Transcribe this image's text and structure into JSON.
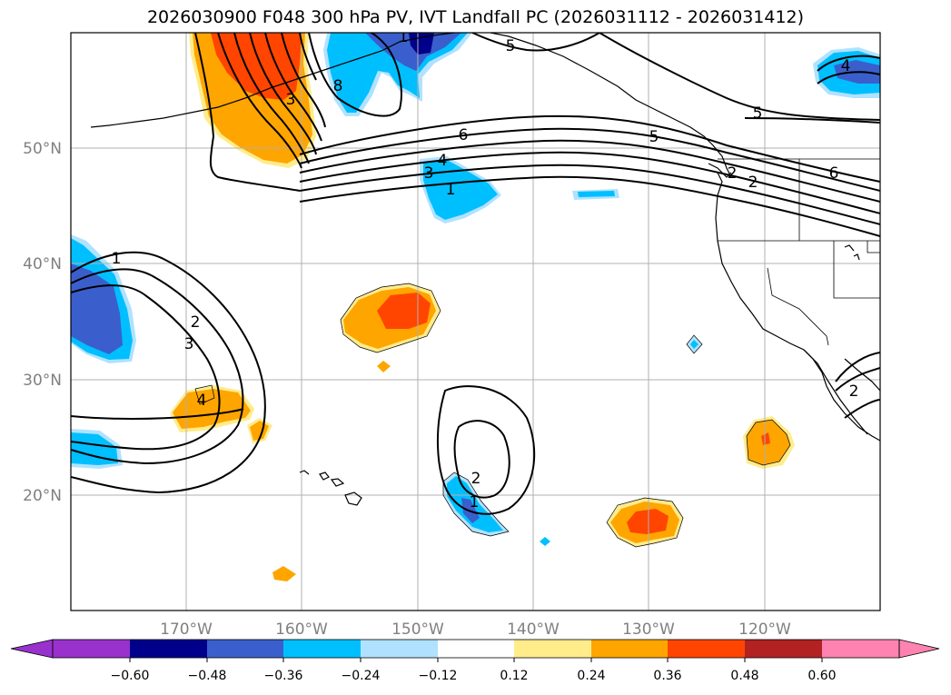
{
  "title": "2026030900 F048 300 hPa PV, IVT Landfall PC (2026031112 - 2026031412)",
  "map": {
    "projection": "PlateCarree",
    "lon_range": [
      -180,
      -110
    ],
    "lat_range": [
      10,
      60
    ],
    "lat_ticks": [
      "50°N",
      "40°N",
      "30°N",
      "20°N"
    ],
    "lon_ticks": [
      "170°W",
      "160°W",
      "150°W",
      "140°W",
      "130°W",
      "120°W"
    ],
    "grid": true
  },
  "contour_labels": [
    "1",
    "2",
    "3",
    "4",
    "5",
    "6",
    "8",
    "1",
    "2",
    "3",
    "4",
    "5",
    "6",
    "1",
    "2",
    "3",
    "1",
    "2",
    "4",
    "5",
    "2"
  ],
  "colorbar": {
    "ticks": [
      "−0.60",
      "−0.48",
      "−0.36",
      "−0.24",
      "−0.12",
      "0.12",
      "0.24",
      "0.36",
      "0.48",
      "0.60"
    ],
    "colors": [
      "#9932cc",
      "#00008b",
      "#3a5fcd",
      "#00bfff",
      "#b0e2ff",
      "#ffffff",
      "#ffec8b",
      "#ffa500",
      "#ff4500",
      "#b22222",
      "#ff83b0"
    ]
  },
  "fill_colors": {
    "neg_024": "#00bfff",
    "neg_036": "#3a5fcd",
    "neg_048": "#00008b",
    "neg_012": "#b0e2ff",
    "pos_012": "#ffec8b",
    "pos_024": "#ffa500",
    "pos_036": "#ff4500"
  }
}
